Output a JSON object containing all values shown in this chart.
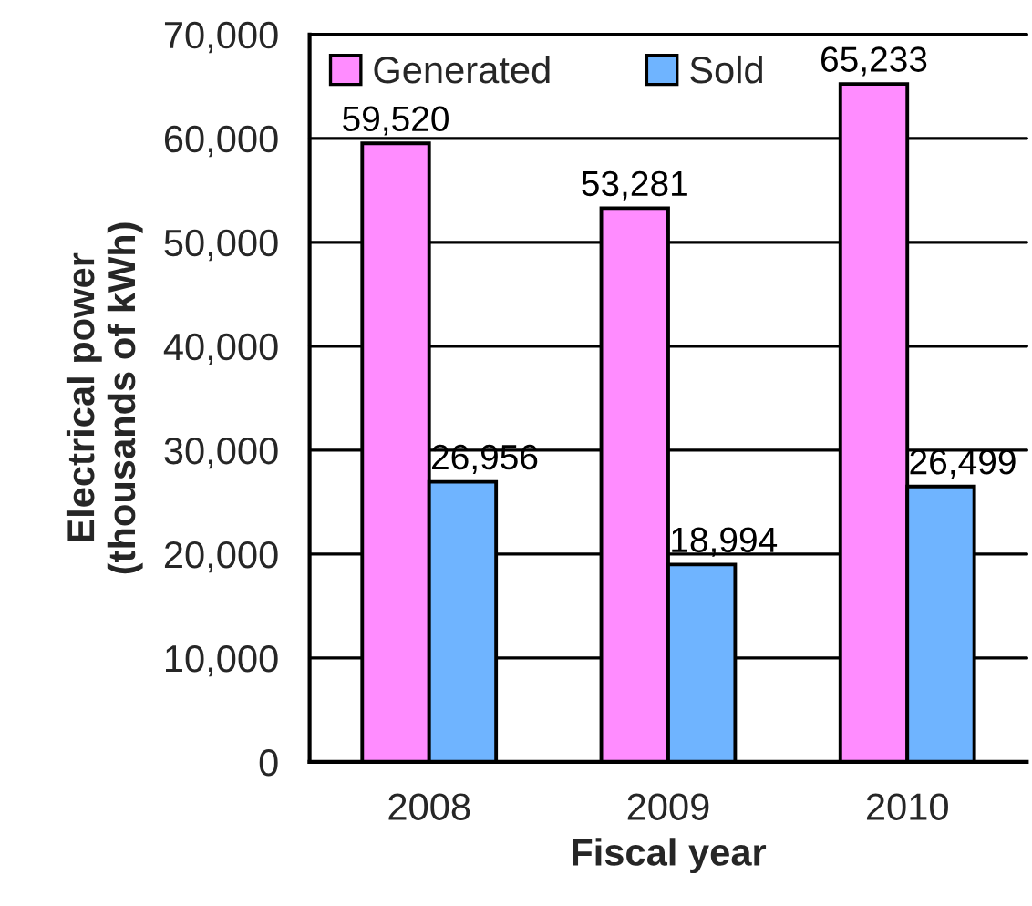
{
  "chart_data": {
    "type": "bar",
    "xlabel": "Fiscal year",
    "ylabel": "Electrical power\n(thousands of kWh)",
    "categories": [
      "2008",
      "2009",
      "2010"
    ],
    "series": [
      {
        "name": "Generated",
        "color": "#ff8cff",
        "values": [
          59520,
          53281,
          65233
        ],
        "value_labels": [
          "59,520",
          "53,281",
          "65,233"
        ]
      },
      {
        "name": "Sold",
        "color": "#6fb4ff",
        "values": [
          26956,
          18994,
          26499
        ],
        "value_labels": [
          "26,956",
          "18,994",
          "26,499"
        ]
      }
    ],
    "ylim": [
      0,
      70000
    ],
    "yticks": [
      0,
      {
        "value": 10000,
        "label": "10,000"
      },
      {
        "value": 20000,
        "label": "20,000"
      },
      {
        "value": 30000,
        "label": "30,000"
      },
      {
        "value": 40000,
        "label": "40,000"
      },
      {
        "value": 50000,
        "label": "50,000"
      },
      {
        "value": 60000,
        "label": "60,000"
      },
      {
        "value": 70000,
        "label": "70,000"
      }
    ],
    "grid": "y",
    "legend": "top left"
  }
}
